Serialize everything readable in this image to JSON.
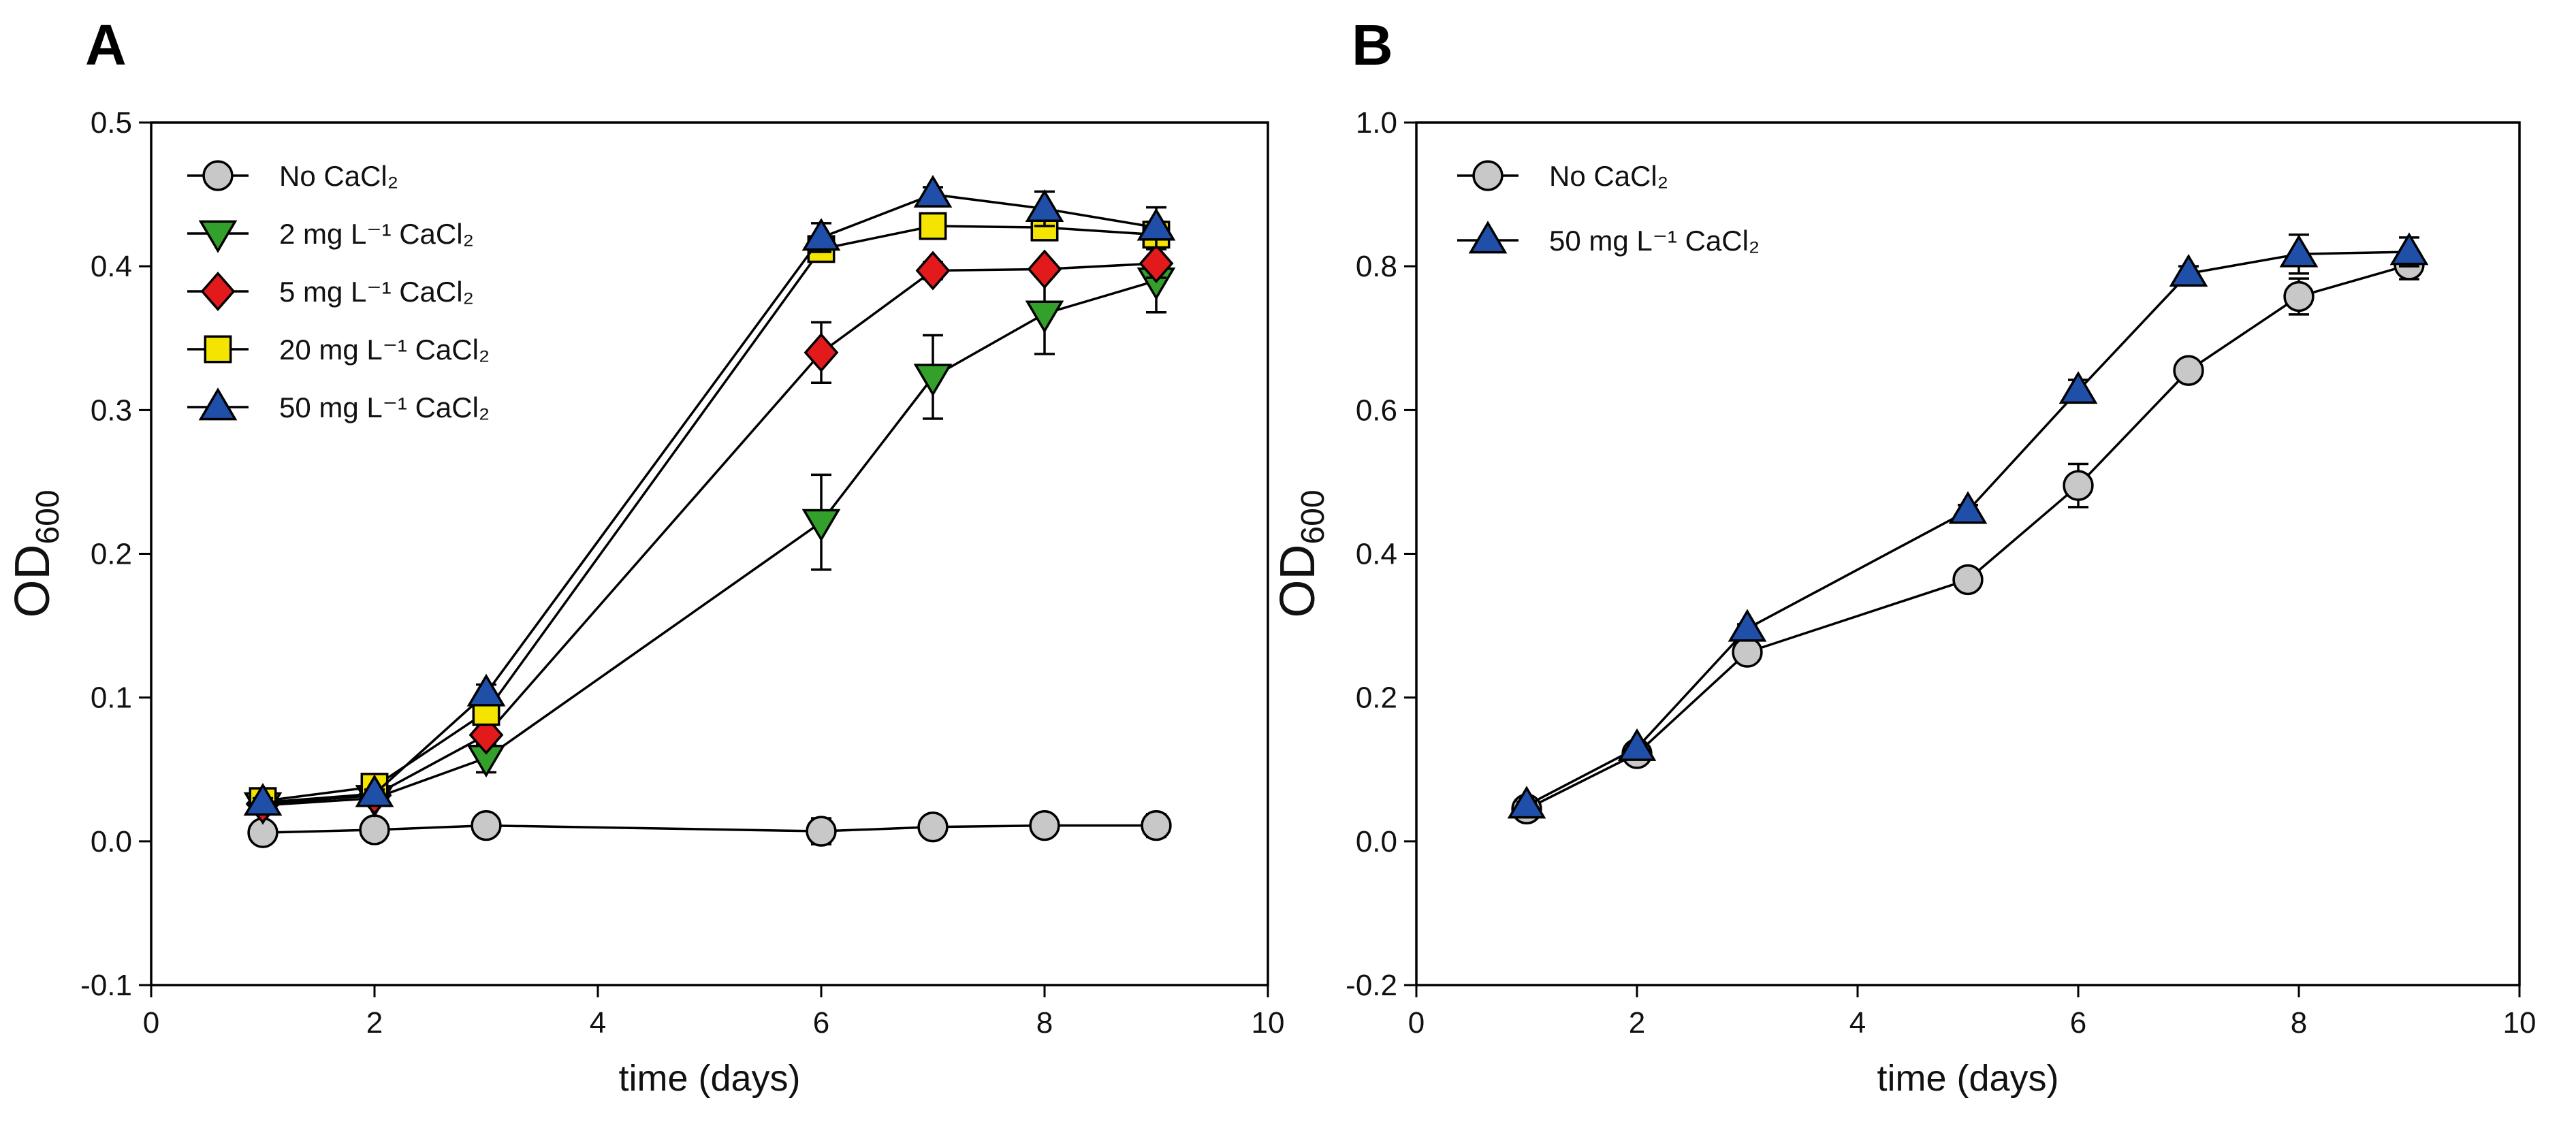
{
  "chart_data": [
    {
      "panel": "A",
      "type": "line",
      "xlabel": "time (days)",
      "ylabel_main": "OD",
      "ylabel_sub": "600",
      "xlim": [
        0,
        10
      ],
      "ylim": [
        -0.1,
        0.5
      ],
      "xticks": [
        0,
        2,
        4,
        6,
        8,
        10
      ],
      "xtick_labels": [
        "0",
        "2",
        "4",
        "6",
        "8",
        "10"
      ],
      "yticks": [
        -0.1,
        0.0,
        0.1,
        0.2,
        0.3,
        0.4,
        0.5
      ],
      "ytick_labels": [
        "-0.1",
        "0.0",
        "0.1",
        "0.2",
        "0.3",
        "0.4",
        "0.5"
      ],
      "legend_position": "top-left",
      "grid": false,
      "series": [
        {
          "name": "No CaCl₂",
          "marker": "circle",
          "color": "#c8c8c8",
          "x": [
            1,
            2,
            3,
            6,
            7,
            8,
            9
          ],
          "y": [
            0.006,
            0.008,
            0.011,
            0.007,
            0.01,
            0.011,
            0.011
          ],
          "err": [
            0.004,
            0.004,
            0.005,
            0.009,
            0.004,
            0.007,
            0.008
          ]
        },
        {
          "name": "2 mg L⁻¹ CaCl₂",
          "marker": "triangle-down",
          "color": "#33a02c",
          "x": [
            1,
            2,
            3,
            6,
            7,
            8,
            9
          ],
          "y": [
            0.025,
            0.03,
            0.058,
            0.222,
            0.323,
            0.367,
            0.39
          ],
          "err": [
            0.003,
            0.003,
            0.01,
            0.033,
            0.029,
            0.028,
            0.022
          ]
        },
        {
          "name": "5 mg L⁻¹ CaCl₂",
          "marker": "diamond",
          "color": "#e31a1c",
          "x": [
            1,
            2,
            3,
            6,
            7,
            8,
            9
          ],
          "y": [
            0.026,
            0.032,
            0.074,
            0.34,
            0.397,
            0.398,
            0.402
          ],
          "err": [
            0.003,
            0.003,
            0.007,
            0.021,
            0.006,
            0.005,
            0.01
          ]
        },
        {
          "name": "20 mg L⁻¹ CaCl₂",
          "marker": "square",
          "color": "#f5e400",
          "x": [
            1,
            2,
            3,
            6,
            7,
            8,
            9
          ],
          "y": [
            0.028,
            0.038,
            0.09,
            0.412,
            0.428,
            0.427,
            0.422
          ],
          "err": [
            0.003,
            0.003,
            0.005,
            0.006,
            0.007,
            0.008,
            0.009
          ]
        },
        {
          "name": "50 mg L⁻¹ CaCl₂",
          "marker": "triangle-up",
          "color": "#1f4fa8",
          "x": [
            1,
            2,
            3,
            6,
            7,
            8,
            9
          ],
          "y": [
            0.027,
            0.033,
            0.103,
            0.42,
            0.45,
            0.44,
            0.427
          ],
          "err": [
            0.003,
            0.003,
            0.006,
            0.01,
            0.005,
            0.012,
            0.014
          ]
        }
      ]
    },
    {
      "panel": "B",
      "type": "line",
      "xlabel": "time (days)",
      "ylabel_main": "OD",
      "ylabel_sub": "600",
      "xlim": [
        0,
        10
      ],
      "ylim": [
        -0.2,
        1.0
      ],
      "xticks": [
        0,
        2,
        4,
        6,
        8,
        10
      ],
      "xtick_labels": [
        "0",
        "2",
        "4",
        "6",
        "8",
        "10"
      ],
      "yticks": [
        -0.2,
        0.0,
        0.2,
        0.4,
        0.6,
        0.8,
        1.0
      ],
      "ytick_labels": [
        "-0.2",
        "0.0",
        "0.2",
        "0.4",
        "0.6",
        "0.8",
        "1.0"
      ],
      "legend_position": "top-left",
      "grid": false,
      "series": [
        {
          "name": "No CaCl₂",
          "marker": "circle",
          "color": "#c8c8c8",
          "x": [
            1,
            2,
            3,
            5,
            6,
            7,
            8,
            9
          ],
          "y": [
            0.045,
            0.122,
            0.263,
            0.364,
            0.495,
            0.655,
            0.758,
            0.802
          ],
          "err": [
            0.006,
            0.006,
            0.01,
            0.008,
            0.03,
            0.01,
            0.025,
            0.02
          ]
        },
        {
          "name": "50 mg L⁻¹ CaCl₂",
          "marker": "triangle-up",
          "color": "#1f4fa8",
          "x": [
            1,
            2,
            3,
            5,
            6,
            7,
            8,
            9
          ],
          "y": [
            0.05,
            0.13,
            0.296,
            0.46,
            0.627,
            0.79,
            0.817,
            0.82
          ],
          "err": [
            0.005,
            0.006,
            0.006,
            0.008,
            0.015,
            0.01,
            0.027,
            0.02
          ]
        }
      ]
    }
  ]
}
